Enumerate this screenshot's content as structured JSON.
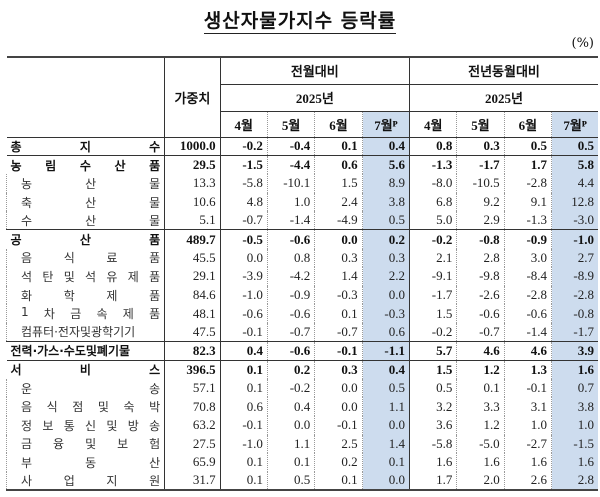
{
  "title": "생산자물가지수 등락률",
  "unit": "(%)",
  "header": {
    "weight": "가중치",
    "group_mom": "전월대비",
    "group_yoy": "전년동월대비",
    "year_mom": "2025년",
    "year_yoy": "2025년",
    "months": [
      "4월",
      "5월",
      "6월",
      "7월ᴾ",
      "4월",
      "5월",
      "6월",
      "7월ᴾ"
    ]
  },
  "highlight_color": "#cddcee",
  "rows": [
    {
      "label": "총 지 수",
      "level": "major",
      "weight": "1000.0",
      "mom": [
        "-0.2",
        "-0.4",
        "0.1",
        "0.4"
      ],
      "yoy": [
        "0.8",
        "0.3",
        "0.5",
        "0.5"
      ]
    },
    {
      "label": "농 림 수 산 품",
      "level": "major",
      "weight": "29.5",
      "mom": [
        "-1.5",
        "-4.4",
        "0.6",
        "5.6"
      ],
      "yoy": [
        "-1.3",
        "-1.7",
        "1.7",
        "5.8"
      ]
    },
    {
      "label": "농 산 물",
      "level": "sub",
      "weight": "13.3",
      "mom": [
        "-5.8",
        "-10.1",
        "1.5",
        "8.9"
      ],
      "yoy": [
        "-8.0",
        "-10.5",
        "-2.8",
        "4.4"
      ]
    },
    {
      "label": "축 산 물",
      "level": "sub",
      "weight": "10.6",
      "mom": [
        "4.8",
        "1.0",
        "2.4",
        "3.8"
      ],
      "yoy": [
        "6.8",
        "9.2",
        "9.1",
        "12.8"
      ]
    },
    {
      "label": "수 산 물",
      "level": "sub",
      "weight": "5.1",
      "mom": [
        "-0.7",
        "-1.4",
        "-4.9",
        "0.5"
      ],
      "yoy": [
        "5.0",
        "2.9",
        "-1.3",
        "-3.0"
      ]
    },
    {
      "label": "공 산 품",
      "level": "major",
      "weight": "489.7",
      "mom": [
        "-0.5",
        "-0.6",
        "0.0",
        "0.2"
      ],
      "yoy": [
        "-0.2",
        "-0.8",
        "-0.9",
        "-1.0"
      ]
    },
    {
      "label": "음 식 료 품",
      "level": "sub",
      "weight": "45.5",
      "mom": [
        "0.0",
        "0.8",
        "0.3",
        "0.3"
      ],
      "yoy": [
        "2.1",
        "2.8",
        "3.0",
        "2.7"
      ]
    },
    {
      "label": "석 탄 및 석 유 제 품",
      "level": "sub",
      "weight": "29.1",
      "mom": [
        "-3.9",
        "-4.2",
        "1.4",
        "2.2"
      ],
      "yoy": [
        "-9.1",
        "-9.8",
        "-8.4",
        "-8.9"
      ]
    },
    {
      "label": "화 학 제 품",
      "level": "sub",
      "weight": "84.6",
      "mom": [
        "-1.0",
        "-0.9",
        "-0.3",
        "0.0"
      ],
      "yoy": [
        "-1.7",
        "-2.6",
        "-2.8",
        "-2.8"
      ]
    },
    {
      "label": "1 차 금 속 제 품",
      "level": "sub",
      "weight": "48.1",
      "mom": [
        "-0.6",
        "-0.6",
        "0.1",
        "-0.3"
      ],
      "yoy": [
        "1.5",
        "-0.6",
        "-0.6",
        "-0.8"
      ]
    },
    {
      "label": "컴퓨터·전자및광학기기",
      "level": "sub",
      "weight": "47.5",
      "mom": [
        "-0.1",
        "-0.7",
        "-0.7",
        "0.6"
      ],
      "yoy": [
        "-0.2",
        "-0.7",
        "-1.4",
        "-1.7"
      ]
    },
    {
      "label": "전력·가스·수도및폐기물",
      "level": "major",
      "weight": "82.3",
      "mom": [
        "0.4",
        "-0.6",
        "-0.1",
        "-1.1"
      ],
      "yoy": [
        "5.7",
        "4.6",
        "4.6",
        "3.9"
      ]
    },
    {
      "label": "서 비 스",
      "level": "major",
      "weight": "396.5",
      "mom": [
        "0.1",
        "0.2",
        "0.3",
        "0.4"
      ],
      "yoy": [
        "1.5",
        "1.2",
        "1.3",
        "1.6"
      ]
    },
    {
      "label": "운 송",
      "level": "sub",
      "weight": "57.1",
      "mom": [
        "0.1",
        "-0.2",
        "0.0",
        "0.5"
      ],
      "yoy": [
        "0.5",
        "0.1",
        "-0.1",
        "0.7"
      ]
    },
    {
      "label": "음 식 점 및 숙 박",
      "level": "sub",
      "weight": "70.8",
      "mom": [
        "0.6",
        "0.4",
        "0.0",
        "1.1"
      ],
      "yoy": [
        "3.2",
        "3.3",
        "3.1",
        "3.8"
      ]
    },
    {
      "label": "정 보 통 신 및 방 송",
      "level": "sub",
      "weight": "63.2",
      "mom": [
        "-0.1",
        "0.0",
        "-0.1",
        "0.0"
      ],
      "yoy": [
        "3.6",
        "1.2",
        "1.0",
        "1.0"
      ]
    },
    {
      "label": "금 융 및 보 험",
      "level": "sub",
      "weight": "27.5",
      "mom": [
        "-1.0",
        "1.1",
        "2.5",
        "1.4"
      ],
      "yoy": [
        "-5.8",
        "-5.0",
        "-2.7",
        "-1.5"
      ]
    },
    {
      "label": "부 동 산",
      "level": "sub",
      "weight": "65.9",
      "mom": [
        "0.1",
        "0.1",
        "0.2",
        "0.1"
      ],
      "yoy": [
        "1.6",
        "1.6",
        "1.6",
        "1.6"
      ]
    },
    {
      "label": "사 업 지 원",
      "level": "sub",
      "weight": "31.7",
      "mom": [
        "0.1",
        "0.5",
        "0.1",
        "0.0"
      ],
      "yoy": [
        "1.7",
        "2.0",
        "2.6",
        "2.8"
      ]
    }
  ]
}
